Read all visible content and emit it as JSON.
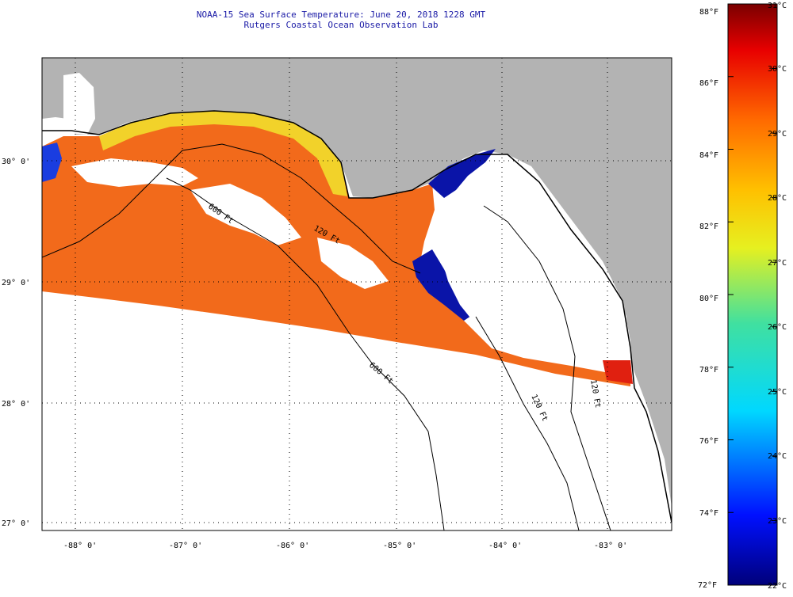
{
  "header": {
    "title": "NOAA-15 Sea Surface Temperature:  June 20, 2018 1228 GMT",
    "subtitle": "Rutgers Coastal Ocean Observation Lab"
  },
  "map": {
    "lon_labels": [
      "-88° 0'",
      "-87° 0'",
      "-86° 0'",
      "-85° 0'",
      "-84° 0'",
      "-83° 0'"
    ],
    "lat_labels": [
      "30° 0'",
      "29° 0'",
      "28° 0'",
      "27° 0'"
    ],
    "contour_labels": [
      "120 Ft",
      "600 Ft",
      "600 Ft",
      "120 Ft",
      "120 Ft"
    ],
    "colors": {
      "land": "#b3b3b3",
      "cloud": "#ffffff",
      "warm": "#f26a1b",
      "cold": "#0a14a8"
    }
  },
  "colorbar": {
    "fahrenheit": [
      "88°F",
      "86°F",
      "84°F",
      "82°F",
      "80°F",
      "78°F",
      "76°F",
      "74°F",
      "72°F"
    ],
    "celsius": [
      "31°C",
      "30°C",
      "29°C",
      "28°C",
      "27°C",
      "26°C",
      "25°C",
      "24°C",
      "23°C",
      "22°C"
    ]
  }
}
